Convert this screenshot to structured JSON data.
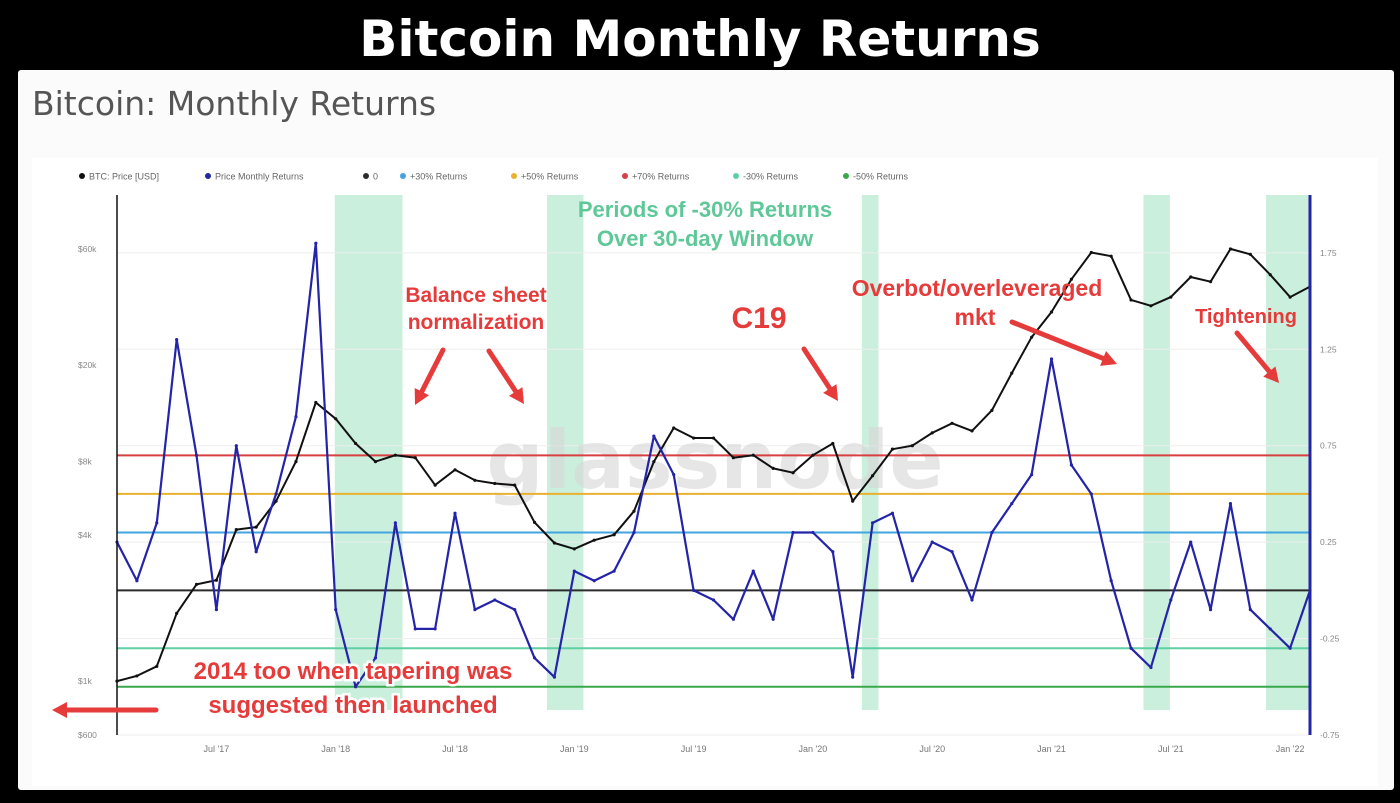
{
  "headline": "Bitcoin Monthly Returns",
  "panel_title": "Bitcoin: Monthly Returns",
  "watermark": "glassnode",
  "colors": {
    "price": "#111111",
    "returns": "#2424a8",
    "zero": "#2b2b2b",
    "plus30": "#42a5e0",
    "plus50": "#e8b230",
    "plus70": "#d64040",
    "minus30": "#5fd0a4",
    "minus50": "#3aa84a",
    "shade": "#b8ead2",
    "annotation": "#e63b3b"
  },
  "annotations": {
    "periods_line1": "Periods of -30% Returns",
    "periods_line2": "Over 30-day Window",
    "balance_line1": "Balance sheet",
    "balance_line2": "normalization",
    "c19": "C19",
    "overbot_line1": "Overbot/overleveraged",
    "overbot_line2": "mkt",
    "tightening": "Tightening",
    "taper_line1": "2014 too when tapering was",
    "taper_line2": "suggested then launched"
  },
  "chart_data": {
    "type": "line",
    "legend": [
      "BTC: Price [USD]",
      "Price Monthly Returns",
      "0",
      "+30% Returns",
      "+50% Returns",
      "+70% Returns",
      "-30% Returns",
      "-50% Returns"
    ],
    "legend_position": "top-left",
    "x_tick_labels": [
      "Jul '17",
      "Jan '18",
      "Jul '18",
      "Jan '19",
      "Jul '19",
      "Jan '20",
      "Jul '20",
      "Jan '21",
      "Jul '21",
      "Jan '22"
    ],
    "x_ticks": [
      "2017-07",
      "2018-01",
      "2018-07",
      "2019-01",
      "2019-07",
      "2020-01",
      "2020-07",
      "2021-01",
      "2021-07",
      "2022-01"
    ],
    "x_range": [
      "2017-02",
      "2022-02"
    ],
    "y_left_tick_labels": [
      "$600",
      "$1k",
      "$4k",
      "$8k",
      "$20k",
      "$60k"
    ],
    "y_left_ticks": [
      600,
      1000,
      4000,
      8000,
      20000,
      60000
    ],
    "y_left_scale": "log",
    "y_left_range": [
      600,
      100000
    ],
    "y_right_tick_labels": [
      "-0.75",
      "-0.25",
      "0.25",
      "0.75",
      "1.25",
      "1.75"
    ],
    "y_right_ticks": [
      -0.75,
      -0.25,
      0.25,
      0.75,
      1.25,
      1.75
    ],
    "y_right_range": [
      -0.75,
      2.05
    ],
    "reference_lines": [
      {
        "name": "0",
        "value": 0,
        "color_key": "zero"
      },
      {
        "name": "+30% Returns",
        "value": 0.3,
        "color_key": "plus30"
      },
      {
        "name": "+50% Returns",
        "value": 0.5,
        "color_key": "plus50"
      },
      {
        "name": "+70% Returns",
        "value": 0.7,
        "color_key": "plus70"
      },
      {
        "name": "-30% Returns",
        "value": -0.3,
        "color_key": "minus30"
      },
      {
        "name": "-50% Returns",
        "value": -0.5,
        "color_key": "minus50"
      }
    ],
    "shaded_periods": [
      [
        "2017-12-30",
        "2018-04-12"
      ],
      [
        "2018-11-20",
        "2019-01-15"
      ],
      [
        "2020-03-15",
        "2020-04-10"
      ],
      [
        "2021-05-20",
        "2021-06-30"
      ],
      [
        "2021-11-25",
        "2022-02-15"
      ]
    ],
    "series": [
      {
        "name": "BTC: Price [USD]",
        "axis": "left",
        "x": [
          "2017-02",
          "2017-03",
          "2017-04",
          "2017-05",
          "2017-06",
          "2017-07",
          "2017-08",
          "2017-09",
          "2017-10",
          "2017-11",
          "2017-12",
          "2018-01",
          "2018-02",
          "2018-03",
          "2018-04",
          "2018-05",
          "2018-06",
          "2018-07",
          "2018-08",
          "2018-09",
          "2018-10",
          "2018-11",
          "2018-12",
          "2019-01",
          "2019-02",
          "2019-03",
          "2019-04",
          "2019-05",
          "2019-06",
          "2019-07",
          "2019-08",
          "2019-09",
          "2019-10",
          "2019-11",
          "2019-12",
          "2020-01",
          "2020-02",
          "2020-03",
          "2020-04",
          "2020-05",
          "2020-06",
          "2020-07",
          "2020-08",
          "2020-09",
          "2020-10",
          "2020-11",
          "2020-12",
          "2021-01",
          "2021-02",
          "2021-03",
          "2021-04",
          "2021-05",
          "2021-06",
          "2021-07",
          "2021-08",
          "2021-09",
          "2021-10",
          "2021-11",
          "2021-12",
          "2022-01",
          "2022-02"
        ],
        "values": [
          1000,
          1050,
          1150,
          1900,
          2500,
          2600,
          4200,
          4300,
          5500,
          8000,
          14000,
          12000,
          9500,
          8000,
          8500,
          8300,
          6400,
          7400,
          6700,
          6500,
          6400,
          4500,
          3700,
          3500,
          3800,
          4000,
          5000,
          8000,
          11000,
          10000,
          10000,
          8300,
          8500,
          7500,
          7200,
          8500,
          9500,
          5500,
          7000,
          9000,
          9300,
          10500,
          11500,
          10700,
          13000,
          18500,
          26000,
          33000,
          45000,
          58000,
          56000,
          37000,
          35000,
          38000,
          46000,
          44000,
          60000,
          57000,
          47000,
          38000,
          42000
        ]
      },
      {
        "name": "Price Monthly Returns",
        "axis": "right",
        "x": [
          "2017-02",
          "2017-03",
          "2017-04",
          "2017-05",
          "2017-06",
          "2017-07",
          "2017-08",
          "2017-09",
          "2017-10",
          "2017-11",
          "2017-12",
          "2018-01",
          "2018-02",
          "2018-03",
          "2018-04",
          "2018-05",
          "2018-06",
          "2018-07",
          "2018-08",
          "2018-09",
          "2018-10",
          "2018-11",
          "2018-12",
          "2019-01",
          "2019-02",
          "2019-03",
          "2019-04",
          "2019-05",
          "2019-06",
          "2019-07",
          "2019-08",
          "2019-09",
          "2019-10",
          "2019-11",
          "2019-12",
          "2020-01",
          "2020-02",
          "2020-03",
          "2020-04",
          "2020-05",
          "2020-06",
          "2020-07",
          "2020-08",
          "2020-09",
          "2020-10",
          "2020-11",
          "2020-12",
          "2021-01",
          "2021-02",
          "2021-03",
          "2021-04",
          "2021-05",
          "2021-06",
          "2021-07",
          "2021-08",
          "2021-09",
          "2021-10",
          "2021-11",
          "2021-12",
          "2022-01",
          "2022-02"
        ],
        "values": [
          0.25,
          0.05,
          0.35,
          1.3,
          0.7,
          -0.1,
          0.75,
          0.2,
          0.5,
          0.9,
          1.8,
          -0.1,
          -0.5,
          -0.35,
          0.35,
          -0.2,
          -0.2,
          0.4,
          -0.1,
          -0.05,
          -0.1,
          -0.35,
          -0.45,
          0.1,
          0.05,
          0.1,
          0.3,
          0.8,
          0.6,
          0.0,
          -0.05,
          -0.15,
          0.1,
          -0.15,
          0.3,
          0.3,
          0.2,
          -0.45,
          0.35,
          0.4,
          0.05,
          0.25,
          0.2,
          -0.05,
          0.3,
          0.45,
          0.6,
          1.2,
          0.65,
          0.5,
          0.05,
          -0.3,
          -0.4,
          -0.05,
          0.25,
          -0.1,
          0.45,
          -0.1,
          -0.2,
          -0.3,
          0.0
        ]
      }
    ]
  }
}
